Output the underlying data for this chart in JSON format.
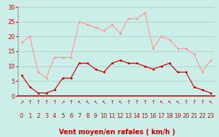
{
  "x": [
    0,
    1,
    2,
    3,
    4,
    5,
    6,
    7,
    8,
    9,
    10,
    11,
    12,
    13,
    14,
    15,
    16,
    17,
    18,
    19,
    20,
    21,
    22,
    23
  ],
  "wind_avg": [
    7,
    3,
    1,
    1,
    2,
    6,
    6,
    11,
    11,
    9,
    8,
    11,
    12,
    11,
    11,
    10,
    9,
    10,
    11,
    8,
    8,
    3,
    2,
    1
  ],
  "wind_gust": [
    18,
    20,
    8,
    6,
    13,
    13,
    13,
    25,
    24,
    23,
    22,
    24,
    21,
    26,
    26,
    28,
    16,
    20,
    19,
    16,
    16,
    14,
    8,
    12
  ],
  "wind_dirs": [
    "↗",
    "↑",
    "↑",
    "↑",
    "↑",
    "↗",
    "↑",
    "↖",
    "↖",
    "↖",
    "↖",
    "↑",
    "↖",
    "↑",
    "↑",
    "↑",
    "↑",
    "↖",
    "↖",
    "↖",
    "↑",
    "↑",
    "↑",
    "↖"
  ],
  "avg_color": "#cc0000",
  "gust_color": "#ff9999",
  "background_color": "#cceee8",
  "grid_color": "#aacccc",
  "xlabel": "Vent moyen/en rafales ( km/h )",
  "xlabel_color": "#cc0000",
  "tick_color": "#cc0000",
  "ylim": [
    0,
    30
  ],
  "yticks": [
    0,
    5,
    10,
    15,
    20,
    25,
    30
  ],
  "xlim": [
    -0.5,
    23.5
  ],
  "tick_fontsize": 6,
  "xlabel_fontsize": 7
}
